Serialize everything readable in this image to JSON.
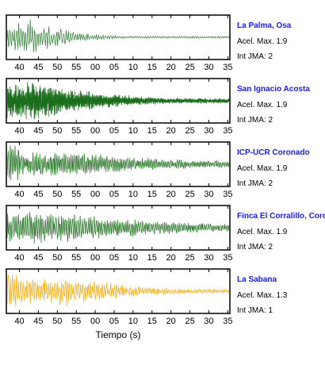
{
  "chart_data": {
    "type": "line",
    "xlabel": "Tiempo (s)",
    "tick_labels": [
      "40",
      "45",
      "50",
      "55",
      "00",
      "05",
      "10",
      "15",
      "20",
      "25",
      "30",
      "35"
    ],
    "accel_label": "Acel. Max.",
    "jma_label": "Int JMA:",
    "series": [
      {
        "name": "La Palma, Osa",
        "accel_max": "1.9",
        "int_jma": "2",
        "color": "#2e7d32",
        "shape": "sparse"
      },
      {
        "name": "San Ignacio Acosta",
        "accel_max": "1.9",
        "int_jma": "2",
        "color": "#1b6e1b",
        "shape": "dense"
      },
      {
        "name": "ICP-UCR Coronado",
        "accel_max": "1.9",
        "int_jma": "2",
        "color": "#1b6e1b",
        "shape": "medium"
      },
      {
        "name": "Finca El Corralillo, Coronado",
        "accel_max": "1.9",
        "int_jma": "2",
        "color": "#1b6e1b",
        "shape": "medium2"
      },
      {
        "name": "La Sabana",
        "accel_max": "1.3",
        "int_jma": "1",
        "color": "#f5a800",
        "shape": "sabana"
      }
    ]
  }
}
